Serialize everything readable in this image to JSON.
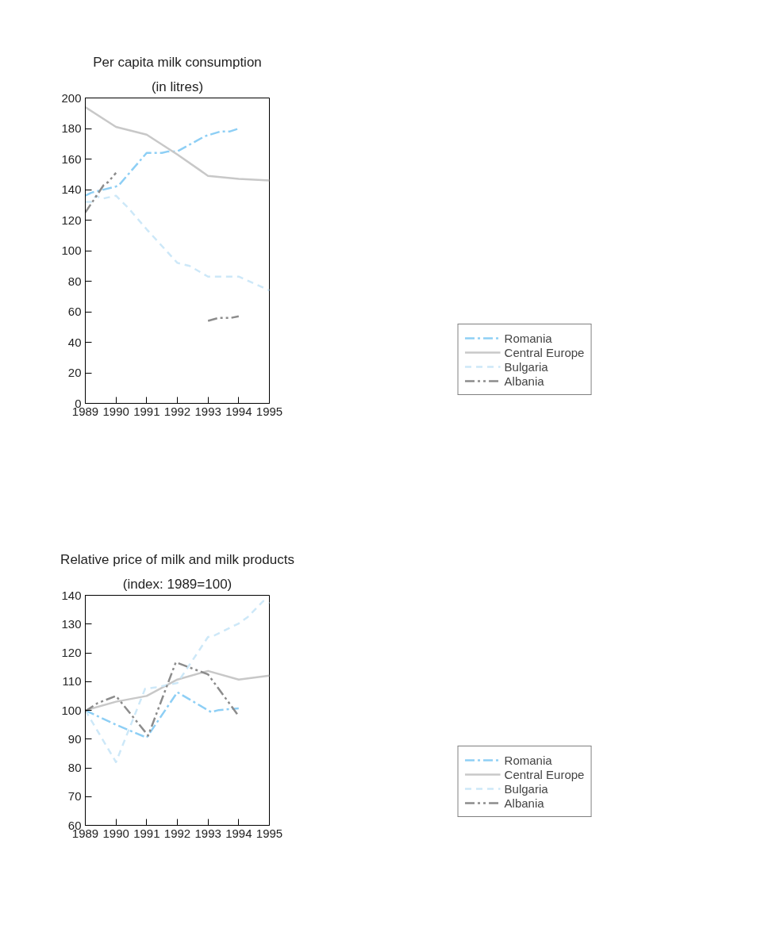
{
  "chart_data": [
    {
      "type": "line",
      "title": "Per capita milk consumption",
      "subtitle": "(in litres)",
      "xlim": [
        1989,
        1995
      ],
      "xticks": [
        1989,
        1990,
        1991,
        1992,
        1993,
        1994,
        1995
      ],
      "ylim": [
        0,
        200
      ],
      "yticks": [
        0,
        20,
        40,
        60,
        80,
        100,
        120,
        140,
        160,
        180,
        200
      ],
      "legend": "right",
      "series": [
        {
          "name": "Romania",
          "color": "#8ecff5",
          "line_style": "dashdot",
          "x": [
            1989,
            1989.2,
            1990,
            1990.1,
            1990.4,
            1991,
            1991.5,
            1991.7,
            1992,
            1992.9,
            1993.4,
            1993.7,
            1994
          ],
          "values": [
            136,
            138,
            142,
            143,
            150,
            164,
            164,
            165,
            165,
            175,
            178,
            178,
            180
          ]
        },
        {
          "name": "Central Europe",
          "color": "#c8c8c8",
          "line_style": "solid",
          "x": [
            1989,
            1990,
            1991,
            1992,
            1993,
            1994,
            1995
          ],
          "values": [
            194,
            181,
            176,
            163,
            149,
            147,
            146
          ]
        },
        {
          "name": "Bulgaria",
          "color": "#cde8f8",
          "line_style": "dashed",
          "x": [
            1989,
            1989.2,
            1989.35,
            1989.55,
            1990,
            1990.4,
            1991,
            1992,
            1992.4,
            1993,
            1994,
            1995
          ],
          "values": [
            132,
            132,
            136,
            134,
            136,
            128,
            114,
            92,
            90,
            83,
            83,
            74
          ]
        },
        {
          "name": "Albania",
          "color": "#8c8c8c",
          "line_style": "dashdotdot",
          "x": [
            1989,
            1989.6,
            1989.75,
            1990,
            1991.5,
            1993,
            1993.35,
            1993.75,
            1994
          ],
          "values": [
            125,
            143,
            145,
            151,
            null,
            54,
            56,
            56,
            57
          ]
        }
      ]
    },
    {
      "type": "line",
      "title": "Relative price of milk and milk products",
      "subtitle": "(index: 1989=100)",
      "xlim": [
        1989,
        1995
      ],
      "xticks": [
        1989,
        1990,
        1991,
        1992,
        1993,
        1994,
        1995
      ],
      "ylim": [
        60,
        140
      ],
      "yticks": [
        60,
        70,
        80,
        90,
        100,
        110,
        120,
        130,
        140
      ],
      "legend": "right",
      "series": [
        {
          "name": "Romania",
          "color": "#8ecff5",
          "line_style": "dashdot",
          "x": [
            1989,
            1990,
            1991,
            1992,
            1993.1,
            1993.35,
            1994
          ],
          "values": [
            100,
            95,
            90.5,
            106.3,
            99.4,
            100.1,
            100.7
          ]
        },
        {
          "name": "Central Europe",
          "color": "#c8c8c8",
          "line_style": "solid",
          "x": [
            1989,
            1990,
            1991,
            1992,
            1993,
            1994,
            1995
          ],
          "values": [
            100,
            103,
            105,
            110.7,
            113.7,
            110.7,
            112.1
          ]
        },
        {
          "name": "Bulgaria",
          "color": "#cde8f8",
          "line_style": "dashed",
          "x": [
            1989,
            1990,
            1990.95,
            1991.3,
            1992,
            1993,
            1993.2,
            1994,
            1994.3,
            1994.8,
            1995
          ],
          "values": [
            100,
            82,
            107.5,
            108,
            109.5,
            125.5,
            126,
            130.2,
            132.5,
            138,
            137.2
          ]
        },
        {
          "name": "Albania",
          "color": "#8c8c8c",
          "line_style": "dashdotdot",
          "x": [
            1989,
            1989.4,
            1990,
            1991.05,
            1991.95,
            1993,
            1994
          ],
          "values": [
            99.7,
            102.5,
            105,
            91.2,
            116.7,
            112.5,
            98
          ]
        }
      ]
    }
  ]
}
